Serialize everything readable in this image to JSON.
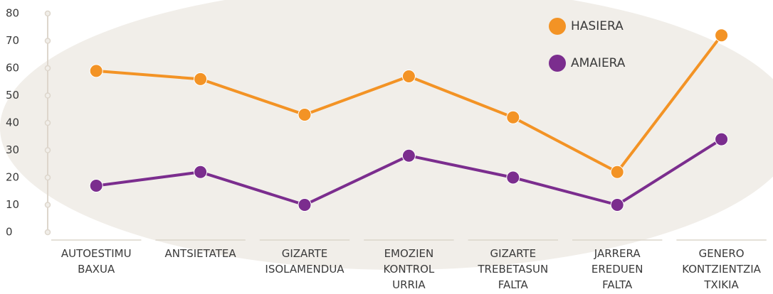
{
  "chart_data": {
    "type": "line",
    "categories": [
      [
        "AUTOESTIMU",
        "BAXUA"
      ],
      [
        "ANTSIETATEA"
      ],
      [
        "GIZARTE",
        "ISOLAMENDUA"
      ],
      [
        "EMOZIEN",
        "KONTROL",
        "URRIA"
      ],
      [
        "GIZARTE",
        "TREBETASUN",
        "FALTA"
      ],
      [
        "JARRERA",
        "EREDUEN",
        "FALTA"
      ],
      [
        "GENERO",
        "KONTZIENTZIA",
        "TXIKIA"
      ]
    ],
    "series": [
      {
        "name": "HASIERA",
        "color": "#f39325",
        "values": [
          59,
          56,
          43,
          57,
          42,
          22,
          72
        ]
      },
      {
        "name": "AMAIERA",
        "color": "#7b2d8e",
        "values": [
          17,
          22,
          10,
          28,
          20,
          10,
          34
        ]
      }
    ],
    "ylim": [
      0,
      80
    ],
    "yticks": [
      0,
      10,
      20,
      30,
      40,
      50,
      60,
      70,
      80
    ],
    "legend": "top-right"
  }
}
